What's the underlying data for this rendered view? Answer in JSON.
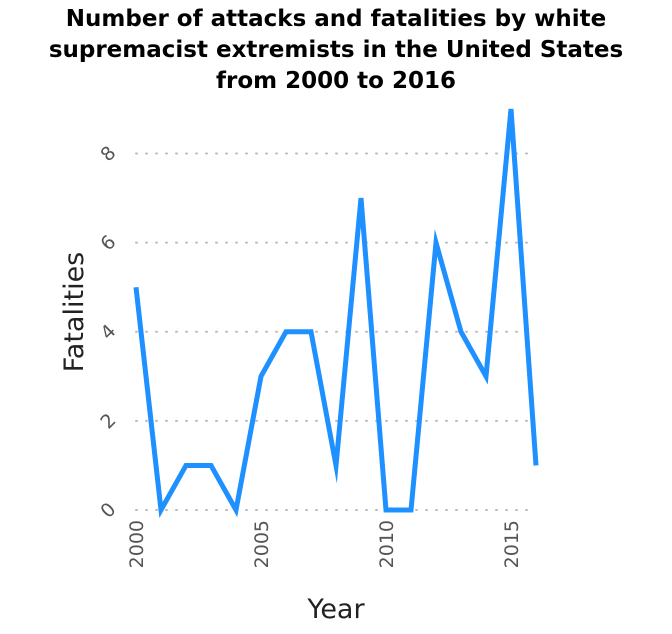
{
  "chart_data": {
    "type": "line",
    "title": [
      "Number of attacks and fatalities by white",
      "supremacist extremists in the United States",
      "from 2000 to 2016"
    ],
    "xlabel": "Year",
    "ylabel": "Fatalities",
    "x": [
      2000,
      2001,
      2002,
      2003,
      2004,
      2005,
      2006,
      2007,
      2008,
      2009,
      2010,
      2011,
      2012,
      2013,
      2014,
      2015,
      2016
    ],
    "series": [
      {
        "values": [
          5,
          0,
          1,
          1,
          0,
          3,
          4,
          4,
          1,
          7,
          0,
          0,
          6,
          4,
          3,
          9,
          1
        ]
      }
    ],
    "xlim": [
      2000,
      2016
    ],
    "ylim": [
      0,
      9
    ],
    "xticks": [
      2000,
      2005,
      2010,
      2015
    ],
    "yticks": [
      0,
      2,
      4,
      6,
      8
    ],
    "grid": "horizontal dotted",
    "line_color": "#1e90ff",
    "grid_color": "#bbbbbb"
  }
}
